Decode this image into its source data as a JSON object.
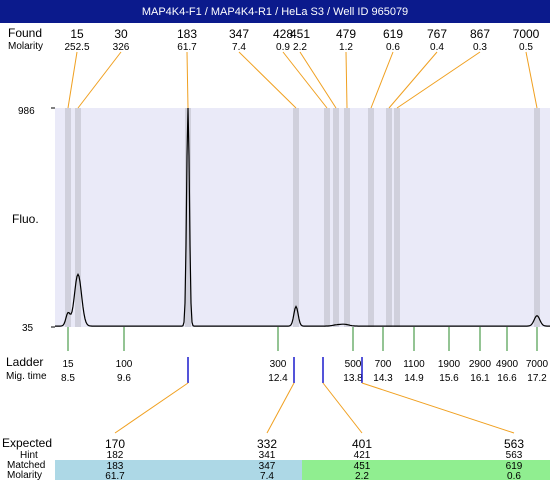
{
  "title": "MAP4K4-F1 / MAP4K4-R1 / HeLa S3 / Well ID 965079",
  "labels": {
    "found": "Found",
    "molarity": "Molarity",
    "fluo": "Fluo.",
    "ladder": "Ladder",
    "mig_time": "Mig. time",
    "expected": "Expected",
    "hint": "Hint",
    "matched": "Matched",
    "molarity_bottom": "Molarity"
  },
  "colors": {
    "title_bg": "#0b1a8c",
    "plot_bg": "#eaeaf8",
    "band": "#d0d0dc",
    "trace": "#000000",
    "found_line": "#f0a020",
    "ladder_tick": "#2a8a2a",
    "marker": "#1a1acc",
    "matched_blue": "#add8e6",
    "matched_green": "#90ee90"
  },
  "chart_data": {
    "type": "line",
    "ylabel": "Fluo.",
    "y_tick_labels": [
      "986",
      "35"
    ],
    "ylim": [
      35,
      986
    ],
    "found": [
      {
        "size": "15",
        "molarity": "252.5",
        "x": 15
      },
      {
        "size": "30",
        "molarity": "326",
        "x": 30
      },
      {
        "size": "183",
        "molarity": "61.7",
        "x": 183
      },
      {
        "size": "347",
        "molarity": "7.4",
        "x": 347
      },
      {
        "size": "428",
        "molarity": "0.9",
        "x": 428
      },
      {
        "size": "451",
        "molarity": "2.2",
        "x": 451
      },
      {
        "size": "479",
        "molarity": "1.2",
        "x": 479
      },
      {
        "size": "619",
        "molarity": "0.6",
        "x": 619
      },
      {
        "size": "767",
        "molarity": "0.4",
        "x": 767
      },
      {
        "size": "867",
        "molarity": "0.3",
        "x": 867
      },
      {
        "size": "7000",
        "molarity": "0.5",
        "x": 7000
      }
    ],
    "ladder": [
      {
        "size": "15",
        "mig_time": "8.5"
      },
      {
        "size": "100",
        "mig_time": "9.6"
      },
      {
        "size": "300",
        "mig_time": "12.4"
      },
      {
        "size": "500",
        "mig_time": "13.8"
      },
      {
        "size": "700",
        "mig_time": "14.3"
      },
      {
        "size": "1100",
        "mig_time": "14.9"
      },
      {
        "size": "1900",
        "mig_time": "15.6"
      },
      {
        "size": "2900",
        "mig_time": "16.1"
      },
      {
        "size": "4900",
        "mig_time": "16.6"
      },
      {
        "size": "7000",
        "mig_time": "17.2"
      }
    ],
    "expected": [
      {
        "expected": "170",
        "hint": "182",
        "matched": "183",
        "molarity": "61.7"
      },
      {
        "expected": "332",
        "hint": "341",
        "matched": "347",
        "molarity": "7.4"
      },
      {
        "expected": "401",
        "hint": "421",
        "matched": "451",
        "molarity": "2.2"
      },
      {
        "expected": "563",
        "hint": "563",
        "matched": "619",
        "molarity": "0.6"
      }
    ],
    "peaks": [
      {
        "size": 15,
        "height": 90
      },
      {
        "size": 30,
        "height": 260
      },
      {
        "size": 183,
        "height": 986
      },
      {
        "size": 347,
        "height": 120
      },
      {
        "size": 451,
        "height": 40
      },
      {
        "size": 479,
        "height": 42
      },
      {
        "size": 7000,
        "height": 80
      }
    ]
  }
}
